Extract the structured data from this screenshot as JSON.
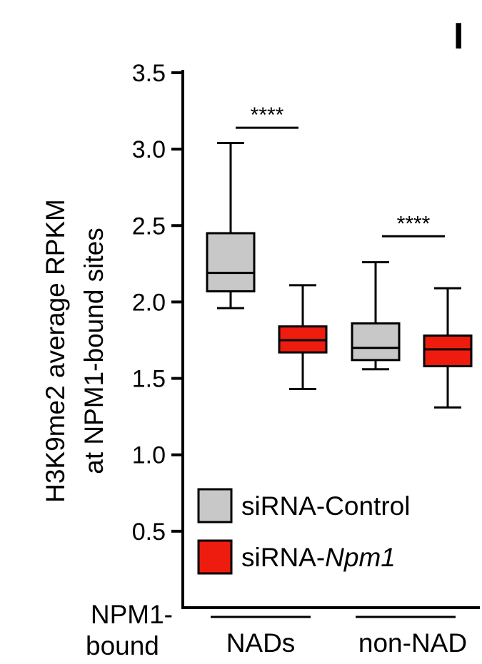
{
  "panel_label": "I",
  "chart_data": {
    "type": "box",
    "ylabel_line1": "H3K9me2 average RPKM",
    "ylabel_line2": "at NPM1-bound sites",
    "ylim": [
      0,
      3.5
    ],
    "yticks": [
      "0.5",
      "1.0",
      "1.5",
      "2.0",
      "2.5",
      "3.0",
      "3.5"
    ],
    "ytick_values": [
      0.5,
      1.0,
      1.5,
      2.0,
      2.5,
      3.0,
      3.5
    ],
    "xrow_label_line1": "NPM1-",
    "xrow_label_line2": "bound",
    "groups": [
      "NADs",
      "non-NAD"
    ],
    "series": [
      {
        "name_prefix": "siRNA-",
        "name_suffix": "Control",
        "suffix_italic": false,
        "color": "#c8c8c8"
      },
      {
        "name_prefix": "siRNA-",
        "name_suffix": "Npm1",
        "suffix_italic": true,
        "color": "#ee1c0f"
      }
    ],
    "boxes": [
      {
        "group": "NADs",
        "series": "siRNA-Control",
        "whisker_low": 1.96,
        "q1": 2.07,
        "median": 2.19,
        "q3": 2.45,
        "whisker_high": 3.04
      },
      {
        "group": "NADs",
        "series": "siRNA-Npm1",
        "whisker_low": 1.43,
        "q1": 1.67,
        "median": 1.75,
        "q3": 1.84,
        "whisker_high": 2.11
      },
      {
        "group": "non-NAD",
        "series": "siRNA-Control",
        "whisker_low": 1.56,
        "q1": 1.62,
        "median": 1.7,
        "q3": 1.86,
        "whisker_high": 2.26
      },
      {
        "group": "non-NAD",
        "series": "siRNA-Npm1",
        "whisker_low": 1.31,
        "q1": 1.58,
        "median": 1.69,
        "q3": 1.78,
        "whisker_high": 2.09
      }
    ],
    "significance": [
      {
        "group": "NADs",
        "label": "****",
        "y": 3.14
      },
      {
        "group": "non-NAD",
        "label": "****",
        "y": 2.43
      }
    ],
    "legend_position": "lower-left"
  }
}
